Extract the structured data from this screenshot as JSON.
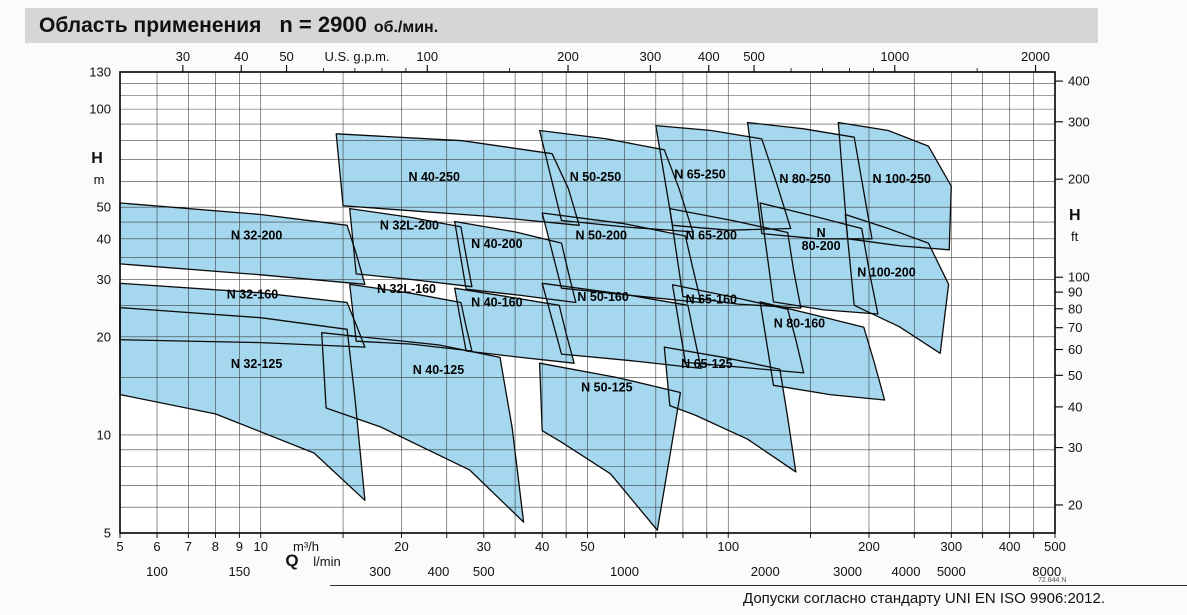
{
  "title": {
    "text": "Область применения",
    "speed": "n = 2900",
    "unit": "об./мин."
  },
  "footer": {
    "note": "Допуски согласно стандарту UNI EN ISO 9906:2012.",
    "doc_code": "72.844.N"
  },
  "colors": {
    "region_fill": "#a5d8ee",
    "region_stroke": "#0b0b0b",
    "grid": "#2f2f2f",
    "frame": "#000000",
    "title_bg": "#d6d6d6"
  },
  "chart_data": {
    "type": "region-map",
    "scale": "log-log",
    "x_axis_m3h": {
      "symbol": "Q",
      "label": "m³/h",
      "range": [
        5,
        500
      ],
      "ticks": [
        5,
        6,
        7,
        8,
        9,
        10,
        20,
        30,
        40,
        50,
        100,
        200,
        300,
        400,
        500
      ]
    },
    "x_axis_lmin": {
      "label": "l/min",
      "ticks": [
        100,
        150,
        300,
        400,
        500,
        1000,
        2000,
        3000,
        4000,
        5000,
        8000
      ]
    },
    "x_axis_gpm": {
      "label": "U.S. g.p.m.",
      "ticks": [
        30,
        40,
        50,
        100,
        200,
        300,
        400,
        500,
        1000,
        2000
      ],
      "minor": [
        60,
        70,
        80,
        90,
        150,
        600,
        700,
        800,
        900,
        1500
      ]
    },
    "y_axis_m": {
      "symbol": "H",
      "label": "m",
      "range": [
        5,
        130
      ],
      "ticks": [
        130,
        100,
        50,
        40,
        30,
        20,
        10,
        5
      ]
    },
    "y_axis_ft": {
      "symbol": "H",
      "label": "ft",
      "ticks": [
        400,
        300,
        200,
        100,
        90,
        80,
        70,
        60,
        50,
        40,
        30,
        20
      ]
    },
    "grid": {
      "q_m3h": [
        5,
        6,
        7,
        8,
        9,
        10,
        15,
        20,
        25,
        30,
        35,
        40,
        45,
        50,
        60,
        70,
        80,
        90,
        100,
        150,
        200,
        250,
        300,
        350,
        400,
        450,
        500
      ],
      "h_m": [
        5,
        6,
        7,
        8,
        9,
        10,
        15,
        20,
        25,
        30,
        35,
        40,
        45,
        50,
        60,
        70,
        80,
        90,
        100,
        110,
        120,
        130
      ]
    },
    "regions": [
      {
        "name": "N 40-250",
        "label_lines": [
          "N 40-250"
        ],
        "label_at": [
          23.5,
          62
        ],
        "poly": [
          [
            14.5,
            84
          ],
          [
            27,
            80
          ],
          [
            42,
            73
          ],
          [
            45.5,
            57
          ],
          [
            48,
            44
          ],
          [
            30,
            47
          ],
          [
            15,
            50.5
          ]
        ]
      },
      {
        "name": "N 50-250",
        "label_lines": [
          "N 50-250"
        ],
        "label_at": [
          52,
          62
        ],
        "poly": [
          [
            39.5,
            86
          ],
          [
            55,
            81
          ],
          [
            73,
            75
          ],
          [
            78.5,
            57
          ],
          [
            84,
            42
          ],
          [
            60,
            43.5
          ],
          [
            44,
            45.5
          ]
        ]
      },
      {
        "name": "N 65-250",
        "label_lines": [
          "N 65-250"
        ],
        "label_at": [
          87,
          63
        ],
        "poly": [
          [
            70,
            89
          ],
          [
            92,
            86
          ],
          [
            118,
            81
          ],
          [
            127,
            59
          ],
          [
            136,
            43
          ],
          [
            100,
            42.5
          ],
          [
            76,
            44
          ]
        ]
      },
      {
        "name": "N 80-250",
        "label_lines": [
          "N 80-250"
        ],
        "label_at": [
          146,
          61
        ],
        "poly": [
          [
            110,
            91
          ],
          [
            145,
            87
          ],
          [
            186,
            82
          ],
          [
            194,
            58
          ],
          [
            203,
            40
          ],
          [
            155,
            40
          ],
          [
            118,
            41.5
          ]
        ]
      },
      {
        "name": "N 100-250",
        "label_lines": [
          "N 100-250"
        ],
        "label_at": [
          235,
          61
        ],
        "poly": [
          [
            172,
            91
          ],
          [
            220,
            86
          ],
          [
            268,
            77
          ],
          [
            300,
            58
          ],
          [
            297,
            37
          ],
          [
            235,
            38
          ],
          [
            180,
            40
          ]
        ]
      },
      {
        "name": "N 32-200",
        "label_lines": [
          "N 32-200"
        ],
        "label_at": [
          9.8,
          41
        ],
        "poly": [
          [
            5,
            51.5
          ],
          [
            10,
            47.5
          ],
          [
            15.3,
            44
          ],
          [
            16,
            36
          ],
          [
            16.7,
            29
          ],
          [
            10,
            31
          ],
          [
            5,
            33.5
          ]
        ]
      },
      {
        "name": "N 32L-200",
        "label_lines": [
          "N 32L-200"
        ],
        "label_at": [
          20.8,
          44
        ],
        "poly": [
          [
            15.5,
            49.5
          ],
          [
            21,
            46.5
          ],
          [
            26.8,
            43.5
          ],
          [
            27.5,
            35.5
          ],
          [
            28.3,
            28.5
          ],
          [
            21,
            30
          ],
          [
            16,
            31.2
          ]
        ]
      },
      {
        "name": "N 40-200",
        "label_lines": [
          "N 40-200"
        ],
        "label_at": [
          32,
          38.5
        ],
        "poly": [
          [
            26,
            45.2
          ],
          [
            35,
            42
          ],
          [
            44,
            38.8
          ],
          [
            45.5,
            31.5
          ],
          [
            47.2,
            25.5
          ],
          [
            36,
            26.8
          ],
          [
            27.5,
            28
          ]
        ]
      },
      {
        "name": "N 50-200",
        "label_lines": [
          "N 50-200"
        ],
        "label_at": [
          53.5,
          41
        ],
        "poly": [
          [
            40,
            48
          ],
          [
            60,
            44.5
          ],
          [
            81,
            40.8
          ],
          [
            84,
            32.5
          ],
          [
            87.5,
            25.5
          ],
          [
            62,
            26.8
          ],
          [
            44,
            28.2
          ]
        ]
      },
      {
        "name": "N 65-200",
        "label_lines": [
          "N 65-200"
        ],
        "label_at": [
          92,
          41
        ],
        "poly": [
          [
            75,
            49.5
          ],
          [
            102,
            45.5
          ],
          [
            134,
            41.8
          ],
          [
            138,
            32
          ],
          [
            143,
            24.5
          ],
          [
            105,
            25.2
          ],
          [
            80,
            26.6
          ]
        ]
      },
      {
        "name": "N 80-200",
        "label_lines": [
          "N",
          "80-200"
        ],
        "label_at": [
          158,
          40
        ],
        "poly": [
          [
            117,
            51.5
          ],
          [
            152,
            47
          ],
          [
            193,
            43
          ],
          [
            200.5,
            31.5
          ],
          [
            209,
            23.5
          ],
          [
            160,
            24.2
          ],
          [
            125,
            25.6
          ]
        ]
      },
      {
        "name": "N 100-200",
        "label_lines": [
          "N 100-200"
        ],
        "label_at": [
          218,
          31.5
        ],
        "poly": [
          [
            178,
            47.5
          ],
          [
            220,
            43
          ],
          [
            268,
            38.8
          ],
          [
            296,
            29
          ],
          [
            284,
            17.8
          ],
          [
            232,
            21.5
          ],
          [
            186,
            25
          ]
        ]
      },
      {
        "name": "N 32-160",
        "label_lines": [
          "N 32-160"
        ],
        "label_at": [
          9.6,
          27
        ],
        "poly": [
          [
            5,
            29.2
          ],
          [
            10,
            27.3
          ],
          [
            15.3,
            25.5
          ],
          [
            16,
            21.8
          ],
          [
            16.7,
            18.6
          ],
          [
            10,
            19.2
          ],
          [
            5,
            19.6
          ]
        ]
      },
      {
        "name": "N 32L-160",
        "label_lines": [
          "N 32L-160"
        ],
        "label_at": [
          20.5,
          28
        ],
        "poly": [
          [
            15.5,
            29
          ],
          [
            21,
            27.2
          ],
          [
            26.8,
            25.5
          ],
          [
            27.5,
            21.5
          ],
          [
            28.3,
            18.1
          ],
          [
            21,
            19
          ],
          [
            16,
            19.4
          ]
        ]
      },
      {
        "name": "N 40-160",
        "label_lines": [
          "N 40-160"
        ],
        "label_at": [
          32,
          25.5
        ],
        "poly": [
          [
            26,
            28.2
          ],
          [
            34,
            26.5
          ],
          [
            43.5,
            25
          ],
          [
            45,
            20.5
          ],
          [
            46.8,
            16.6
          ],
          [
            36,
            17.3
          ],
          [
            27.5,
            18.1
          ]
        ]
      },
      {
        "name": "N 50-160",
        "label_lines": [
          "N 50-160"
        ],
        "label_at": [
          54,
          26.5
        ],
        "poly": [
          [
            40,
            29.2
          ],
          [
            60,
            27
          ],
          [
            82,
            25
          ],
          [
            84.5,
            20.2
          ],
          [
            87.5,
            16
          ],
          [
            62,
            16.9
          ],
          [
            44,
            17.7
          ]
        ]
      },
      {
        "name": "N 65-160",
        "label_lines": [
          "N 65-160"
        ],
        "label_at": [
          92,
          26
        ],
        "poly": [
          [
            76,
            28.9
          ],
          [
            102,
            26.5
          ],
          [
            134,
            24.3
          ],
          [
            139.5,
            19.6
          ],
          [
            145,
            15.5
          ],
          [
            108,
            16.1
          ],
          [
            81,
            16.7
          ]
        ]
      },
      {
        "name": "N 80-160",
        "label_lines": [
          "N 80-160"
        ],
        "label_at": [
          142,
          22
        ],
        "poly": [
          [
            117,
            25.6
          ],
          [
            152,
            23.4
          ],
          [
            195,
            21.4
          ],
          [
            205,
            16.8
          ],
          [
            216,
            12.8
          ],
          [
            165,
            13.3
          ],
          [
            125,
            14.2
          ]
        ]
      },
      {
        "name": "N 32-125",
        "label_lines": [
          "N 32-125"
        ],
        "label_at": [
          9.8,
          16.5
        ],
        "poly": [
          [
            5,
            24.6
          ],
          [
            10,
            22.9
          ],
          [
            15.3,
            21.1
          ],
          [
            15.9,
            13
          ],
          [
            16.7,
            6.3
          ],
          [
            13,
            8.8
          ],
          [
            8,
            11.6
          ],
          [
            5,
            13.3
          ]
        ]
      },
      {
        "name": "N 40-125",
        "label_lines": [
          "N 40-125"
        ],
        "label_at": [
          24,
          15.8
        ],
        "poly": [
          [
            13.5,
            20.6
          ],
          [
            24,
            18.9
          ],
          [
            32.5,
            17.3
          ],
          [
            34.5,
            10.5
          ],
          [
            36.5,
            5.4
          ],
          [
            28,
            7.8
          ],
          [
            18,
            10.6
          ],
          [
            13.8,
            12.1
          ]
        ]
      },
      {
        "name": "N 50-125",
        "label_lines": [
          "N 50-125"
        ],
        "label_at": [
          55,
          14
        ],
        "poly": [
          [
            39.5,
            16.6
          ],
          [
            58,
            15
          ],
          [
            79,
            13.5
          ],
          [
            75,
            8.6
          ],
          [
            70.5,
            5.1
          ],
          [
            56,
            7.6
          ],
          [
            44,
            9.5
          ],
          [
            40,
            10.3
          ]
        ]
      },
      {
        "name": "N 65-125",
        "label_lines": [
          "N 65-125"
        ],
        "label_at": [
          90,
          16.5
        ],
        "poly": [
          [
            73,
            18.6
          ],
          [
            100,
            17.2
          ],
          [
            129,
            15.9
          ],
          [
            134,
            11.3
          ],
          [
            139.5,
            7.7
          ],
          [
            110,
            9.7
          ],
          [
            85,
            11.5
          ],
          [
            75,
            12.3
          ]
        ]
      }
    ]
  }
}
